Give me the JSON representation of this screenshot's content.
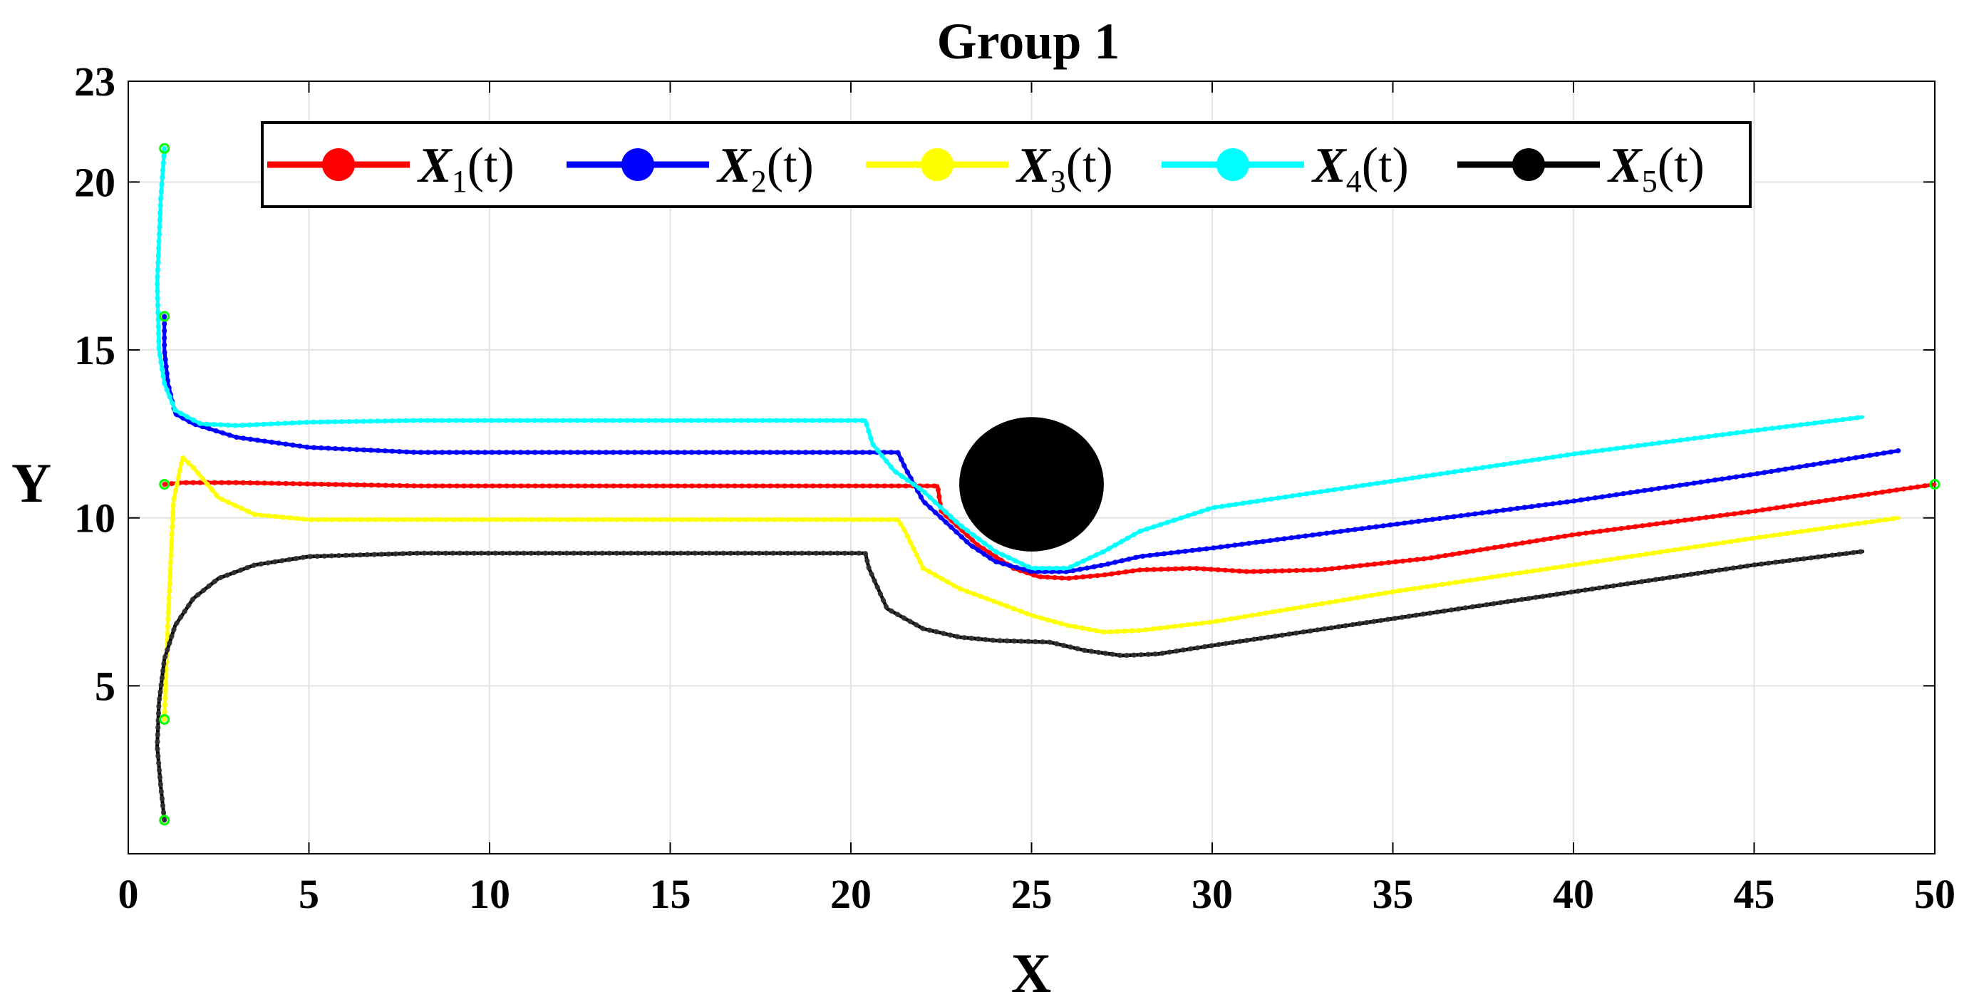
{
  "chart_data": {
    "type": "line",
    "title": "Group 1",
    "xlabel": "X",
    "ylabel": "Y",
    "xlim": [
      0,
      50
    ],
    "ylim": [
      0,
      23
    ],
    "xticks": [
      0,
      5,
      10,
      15,
      20,
      25,
      30,
      35,
      40,
      45,
      50
    ],
    "yticks": [
      5,
      10,
      15,
      20,
      23
    ],
    "grid": true,
    "legend_position": "top",
    "series": [
      {
        "name": "X",
        "subscript": "1",
        "suffix": "(t)",
        "color": "#ff0000",
        "x": [
          1.0,
          1.5,
          3.0,
          8.0,
          15.0,
          20.0,
          22.4,
          22.5,
          23.5,
          24.5,
          25.2,
          26.0,
          27.0,
          28.0,
          29.5,
          31.0,
          33.0,
          36.0,
          40.0,
          45.0,
          50.0
        ],
        "y": [
          11.0,
          11.05,
          11.05,
          10.95,
          10.95,
          10.95,
          10.95,
          10.2,
          9.2,
          8.5,
          8.25,
          8.2,
          8.3,
          8.45,
          8.5,
          8.4,
          8.45,
          8.8,
          9.5,
          10.2,
          11.0
        ]
      },
      {
        "name": "X",
        "subscript": "2",
        "suffix": "(t)",
        "color": "#0000ff",
        "x": [
          1.0,
          1.0,
          1.1,
          1.3,
          1.8,
          3.0,
          5.0,
          8.0,
          12.0,
          18.0,
          21.3,
          21.5,
          22.0,
          22.5,
          23.3,
          24.0,
          25.0,
          26.0,
          27.0,
          28.0,
          30.0,
          35.0,
          40.0,
          45.0,
          49.0
        ],
        "y": [
          16.0,
          15.0,
          14.0,
          13.1,
          12.8,
          12.4,
          12.1,
          11.95,
          11.95,
          11.95,
          11.95,
          11.5,
          10.5,
          10.0,
          9.2,
          8.7,
          8.4,
          8.4,
          8.6,
          8.85,
          9.1,
          9.8,
          10.5,
          11.3,
          12.0
        ]
      },
      {
        "name": "X",
        "subscript": "3",
        "suffix": "(t)",
        "color": "#ffff00",
        "x": [
          1.0,
          1.1,
          1.25,
          1.5,
          1.8,
          2.5,
          3.5,
          5.0,
          10.0,
          21.3,
          21.5,
          22.0,
          23.0,
          24.0,
          25.0,
          26.0,
          27.0,
          28.0,
          30.0,
          35.0,
          40.0,
          45.0,
          49.0
        ],
        "y": [
          4.0,
          7.0,
          10.5,
          11.8,
          11.5,
          10.6,
          10.1,
          9.95,
          9.95,
          9.95,
          9.6,
          8.5,
          7.9,
          7.5,
          7.1,
          6.8,
          6.6,
          6.65,
          6.9,
          7.8,
          8.6,
          9.4,
          10.0
        ]
      },
      {
        "name": "X",
        "subscript": "4",
        "suffix": "(t)",
        "color": "#00ffff",
        "x": [
          1.0,
          0.9,
          0.8,
          0.85,
          1.0,
          1.3,
          2.0,
          3.0,
          5.0,
          8.0,
          12.0,
          16.0,
          20.4,
          20.6,
          21.2,
          22.0,
          23.0,
          24.0,
          25.0,
          26.0,
          27.0,
          28.0,
          30.0,
          35.0,
          40.0,
          45.0,
          48.0
        ],
        "y": [
          21.0,
          19.5,
          17.0,
          15.0,
          14.0,
          13.2,
          12.8,
          12.75,
          12.85,
          12.9,
          12.9,
          12.9,
          12.9,
          12.2,
          11.4,
          10.8,
          9.8,
          9.0,
          8.5,
          8.5,
          9.0,
          9.6,
          10.3,
          11.1,
          11.9,
          12.6,
          13.0
        ]
      },
      {
        "name": "X",
        "subscript": "5",
        "suffix": "(t)",
        "color": "#000000",
        "x": [
          1.0,
          0.9,
          0.8,
          0.85,
          1.0,
          1.3,
          1.8,
          2.5,
          3.5,
          5.0,
          8.0,
          12.0,
          16.0,
          20.4,
          20.5,
          21.0,
          22.0,
          23.0,
          24.0,
          25.5,
          26.5,
          27.5,
          28.5,
          30.0,
          35.0,
          40.0,
          45.0,
          48.0
        ],
        "y": [
          1.0,
          2.0,
          3.2,
          4.5,
          5.8,
          6.8,
          7.6,
          8.2,
          8.6,
          8.85,
          8.95,
          8.95,
          8.95,
          8.95,
          8.5,
          7.3,
          6.7,
          6.45,
          6.35,
          6.3,
          6.05,
          5.9,
          5.95,
          6.2,
          7.0,
          7.8,
          8.6,
          9.0
        ]
      }
    ],
    "start_markers": [
      {
        "x": 1,
        "y": 11
      },
      {
        "x": 1,
        "y": 16
      },
      {
        "x": 1,
        "y": 4
      },
      {
        "x": 1,
        "y": 21
      },
      {
        "x": 1,
        "y": 1
      },
      {
        "x": 50,
        "y": 11
      }
    ],
    "marker_color": "#00ff00",
    "obstacle": {
      "cx": 25,
      "cy": 11,
      "rx": 2,
      "ry": 2,
      "color": "#000000"
    }
  }
}
